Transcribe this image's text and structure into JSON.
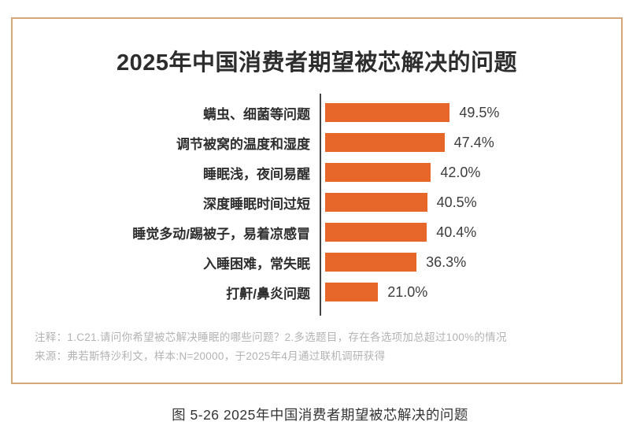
{
  "chart_data": {
    "type": "bar",
    "orientation": "horizontal",
    "title": "2025年中国消费者期望被芯解决的问题",
    "categories": [
      "螨虫、细菌等问题",
      "调节被窝的温度和湿度",
      "睡眠浅，夜间易醒",
      "深度睡眠时间过短",
      "睡觉多动/踢被子，易着凉感冒",
      "入睡困难，常失眠",
      "打鼾/鼻炎问题"
    ],
    "values": [
      49.5,
      47.4,
      42.0,
      40.5,
      40.4,
      36.3,
      21.0
    ],
    "value_labels": [
      "49.5%",
      "47.4%",
      "42.0%",
      "40.5%",
      "40.4%",
      "36.3%",
      "21.0%"
    ],
    "xlim": [
      0,
      100
    ],
    "grid": false,
    "legend": "none",
    "bar_color": "#e7672a",
    "axis_color": "#454545"
  },
  "notes": {
    "line1": "注释：1.C21.请问你希望被芯解决睡眠的哪些问题？2.多选题目，存在各选项加总超过100%的情况",
    "line2": "来源：弗若斯特沙利文，样本:N=20000，于2025年4月通过联机调研获得"
  },
  "caption": "图 5-26 2025年中国消费者期望被芯解决的问题",
  "colors": {
    "card_border": "#d4a878",
    "title_text": "#2d2d2d",
    "note_text": "#b3b3b3"
  }
}
